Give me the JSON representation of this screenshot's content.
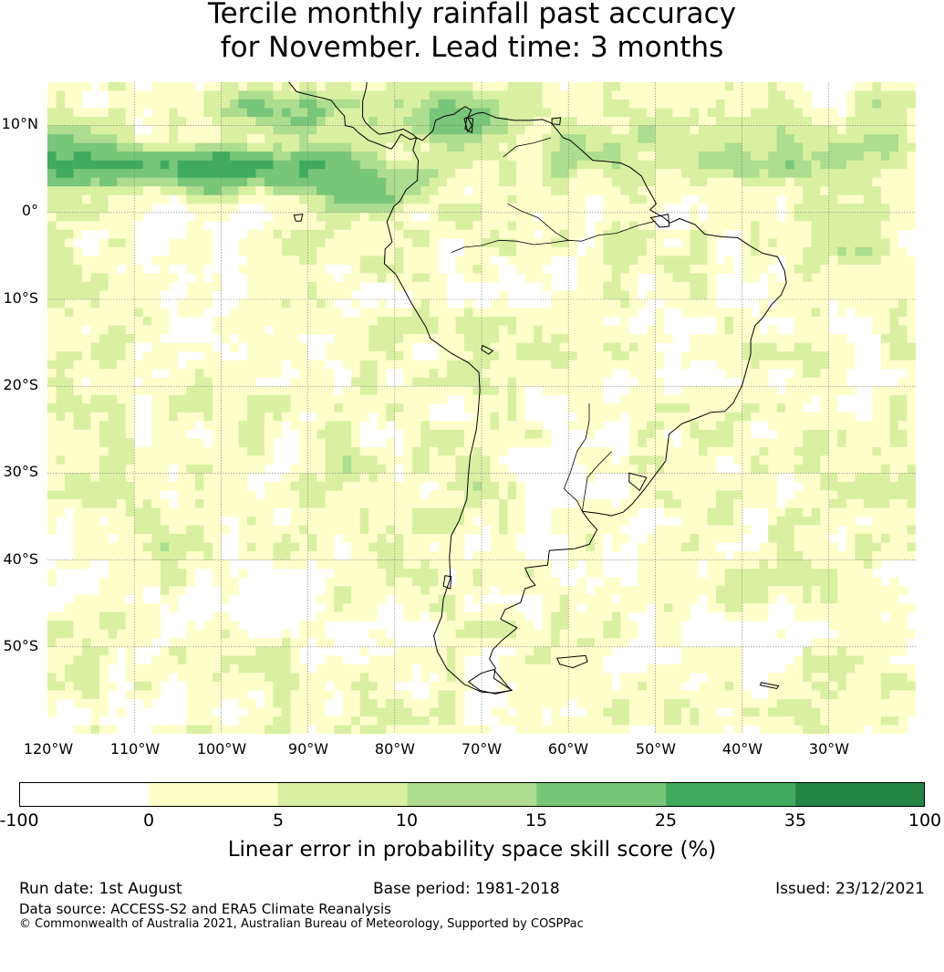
{
  "title": {
    "line1": "Tercile monthly rainfall past accuracy",
    "line2": "for November. Lead time: 3 months"
  },
  "map": {
    "lat_labels": [
      "10°N",
      "0°",
      "10°S",
      "20°S",
      "30°S",
      "40°S",
      "50°S"
    ],
    "lon_labels": [
      "120°W",
      "110°W",
      "100°W",
      "90°W",
      "80°W",
      "70°W",
      "60°W",
      "50°W",
      "40°W",
      "30°W"
    ],
    "extent_lon": [
      -120,
      -20
    ],
    "extent_lat": [
      -60,
      15
    ]
  },
  "legend": {
    "ticks": [
      "-100",
      "0",
      "5",
      "10",
      "15",
      "25",
      "35",
      "100"
    ],
    "colors": [
      "#ffffff",
      "#ffffcc",
      "#d9f0a3",
      "#addd8e",
      "#78c679",
      "#41ab5d",
      "#238443"
    ],
    "label": "Linear error in probability space skill score (%)"
  },
  "footer": {
    "run_date": "Run date: 1st August",
    "base_period": "Base period: 1981-2018",
    "issued": "Issued: 23/12/2021",
    "data_source": "Data source: ACCESS-S2 and ERA5 Climate Reanalysis",
    "copyright": "© Commonwealth of Australia 2021, Australian Bureau of Meteorology, Supported by COSPPac"
  }
}
